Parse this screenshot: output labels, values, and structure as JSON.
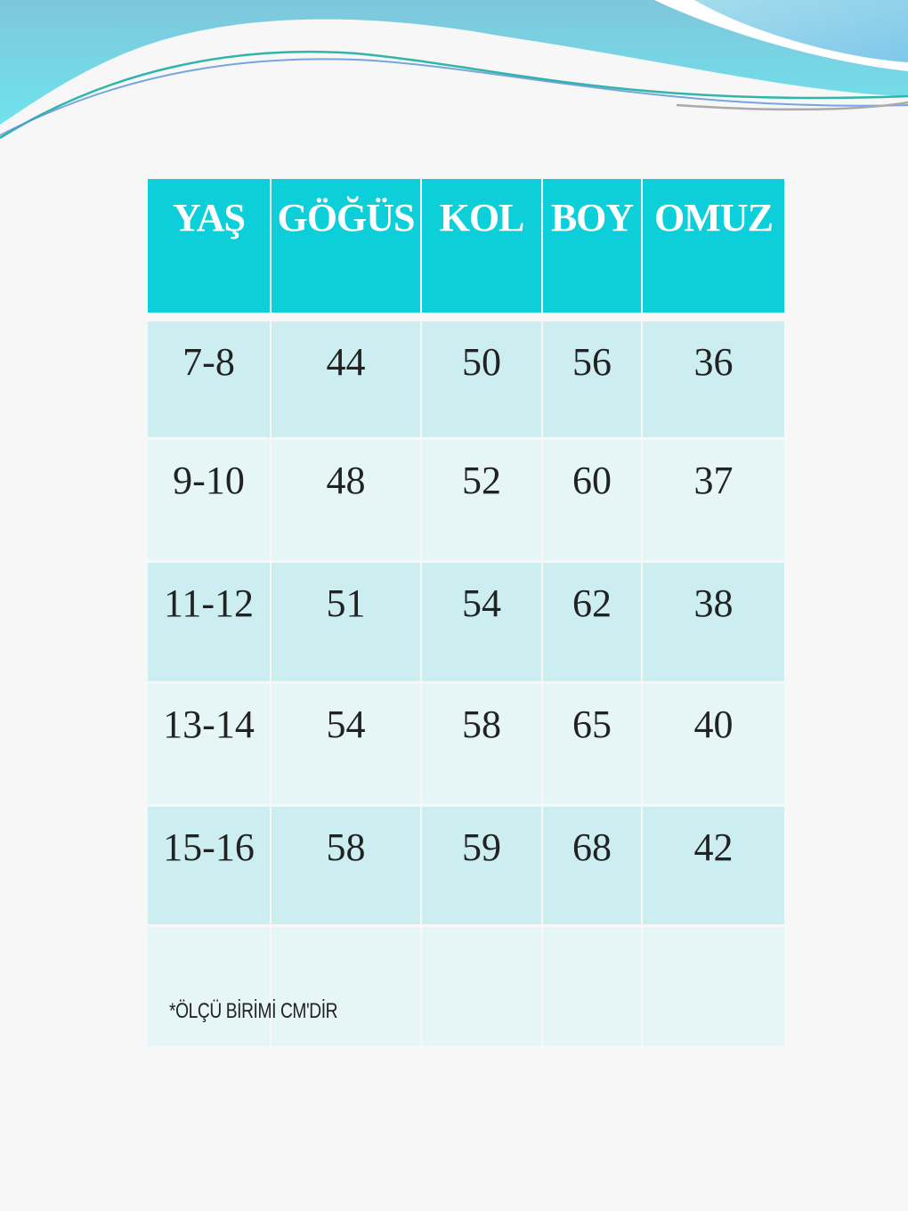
{
  "table": {
    "headers": [
      "YAŞ",
      "GÖĞÜS",
      "KOL",
      "BOY",
      "OMUZ"
    ],
    "rows": [
      [
        "7-8",
        "44",
        "50",
        "56",
        "36"
      ],
      [
        "9-10",
        "48",
        "52",
        "60",
        "37"
      ],
      [
        "11-12",
        "51",
        "54",
        "62",
        "38"
      ],
      [
        "13-14",
        "54",
        "58",
        "65",
        "40"
      ],
      [
        "15-16",
        "58",
        "59",
        "68",
        "42"
      ]
    ]
  },
  "note": "*ÖLÇÜ BİRİMİ CM'DİR",
  "colors": {
    "header": "#0ccfd9",
    "row_odd": "#cdeef0",
    "row_even": "#e6f6f7"
  }
}
